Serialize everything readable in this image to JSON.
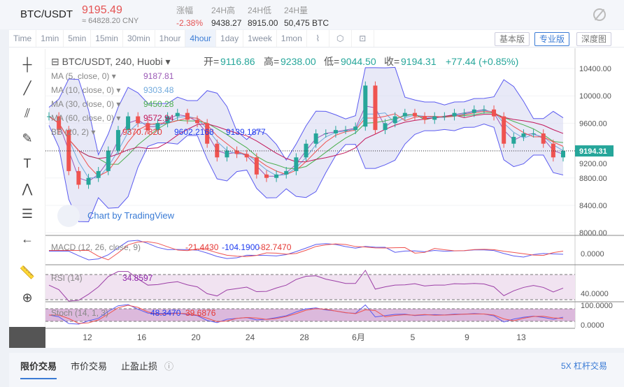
{
  "header": {
    "pair": "BTC/USDT",
    "price": "9195.49",
    "cny": "≈ 64828.20 CNY",
    "stats": [
      {
        "label": "涨幅",
        "value": "-2.38%"
      },
      {
        "label": "24H高",
        "value": "9438.27"
      },
      {
        "label": "24H低",
        "value": "8915.00"
      },
      {
        "label": "24H量",
        "value": "50,475 BTC"
      }
    ]
  },
  "toolbar": {
    "intervals": [
      "Time",
      "1min",
      "5min",
      "15min",
      "30min",
      "1hour",
      "4hour",
      "1day",
      "1week",
      "1mon"
    ],
    "active": "4hour",
    "views": [
      "基本版",
      "专业版",
      "深度图"
    ],
    "active_view": "专业版"
  },
  "chart": {
    "title": "BTC/USDT, 240, Huobi",
    "ohlc": [
      {
        "k": "开=",
        "v": "9116.86"
      },
      {
        "k": "高=",
        "v": "9238.00"
      },
      {
        "k": "低=",
        "v": "9044.50"
      },
      {
        "k": "收=",
        "v": "9194.31"
      }
    ],
    "change": "+77.44 (+0.85%)",
    "indicators": [
      {
        "label": "MA (5, close, 0)",
        "value": "9187.81",
        "color": "#9b59b6"
      },
      {
        "label": "MA (10, close, 0)",
        "value": "9303.48",
        "color": "#6fa8dc"
      },
      {
        "label": "MA (30, close, 0)",
        "value": "9450.28",
        "color": "#4caf50"
      },
      {
        "label": "MA (60, close, 0)",
        "value": "9572.94",
        "color": "#c2185b"
      }
    ],
    "bb": {
      "label": "BB (20, 2)",
      "values": [
        "9370.7820",
        "9602.2168",
        "9139.1877"
      ]
    },
    "watermark": "Chart by TradingView",
    "price_ticks": [
      "10400.00",
      "10000.00",
      "9600.00",
      "9200.00",
      "8800.00",
      "8400.00",
      "8000.00"
    ],
    "last_price": "9194.31",
    "macd": {
      "label": "MACD (12, 26, close, 9)",
      "values": [
        "-21.4430",
        "-104.1900",
        "-82.7470"
      ],
      "tick": "0.0000"
    },
    "rsi": {
      "label": "RSI (14)",
      "value": "34.8597",
      "tick": "40.0000"
    },
    "stoch": {
      "label": "Stoch (14, 1, 3)",
      "values": [
        "48.3470",
        "39.6876"
      ],
      "ticks": [
        "100.0000",
        "0.0000"
      ]
    },
    "date_ticks": [
      "12",
      "16",
      "20",
      "24",
      "28",
      "6月",
      "5",
      "9",
      "13"
    ],
    "colors": {
      "up": "#26a69a",
      "down": "#ef5350"
    }
  },
  "chart_data": {
    "type": "candlestick",
    "ylim": [
      8000,
      10400
    ],
    "closes": [
      9700,
      9500,
      8900,
      8700,
      8800,
      8900,
      9200,
      9500,
      9700,
      9600,
      9500,
      9600,
      9700,
      9750,
      9650,
      9600,
      9300,
      9100,
      9200,
      9150,
      9100,
      8850,
      8800,
      8850,
      8900,
      9100,
      9300,
      9450,
      9450,
      9500,
      9500,
      9550,
      10150,
      9500,
      9600,
      9700,
      9750,
      9700,
      9650,
      9700,
      9700,
      9750,
      9750,
      9800,
      9800,
      9700,
      9300,
      9400,
      9450,
      9450,
      9300,
      9100,
      9194.31
    ]
  },
  "footer": {
    "tabs": [
      "限价交易",
      "市价交易",
      "止盈止损"
    ],
    "leverage": "5X 杠杆交易"
  }
}
